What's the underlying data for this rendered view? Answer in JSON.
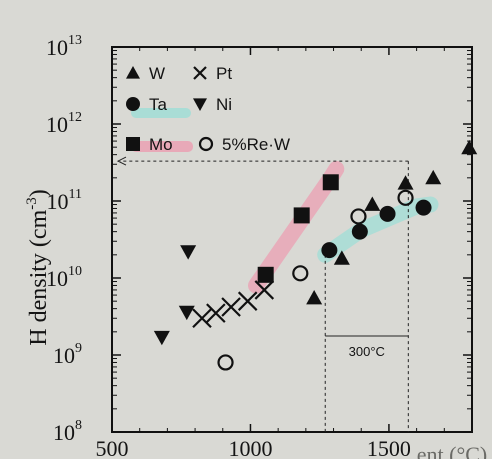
{
  "chart_data": {
    "type": "scatter",
    "ylabel_main": "H density (cm",
    "ylabel_sup": "-3",
    "ylabel_close": ")",
    "x_axis_label_partial": "ent (°C)",
    "x_ticks": [
      {
        "value": 500,
        "label": "500"
      },
      {
        "value": 1000,
        "label": "1000"
      },
      {
        "value": 1500,
        "label": "1500"
      }
    ],
    "y_ticks": [
      {
        "exp": 8,
        "base": "10",
        "sup": "8"
      },
      {
        "exp": 9,
        "base": "10",
        "sup": "9"
      },
      {
        "exp": 10,
        "base": "10",
        "sup": "10"
      },
      {
        "exp": 11,
        "base": "10",
        "sup": "11"
      },
      {
        "exp": 12,
        "base": "10",
        "sup": "12"
      },
      {
        "exp": 13,
        "base": "10",
        "sup": "13"
      }
    ],
    "xlim": [
      500,
      1800
    ],
    "ylim_log10": [
      8,
      13
    ],
    "legend": [
      {
        "name": "W",
        "marker": "triangle-up"
      },
      {
        "name": "Pt",
        "marker": "x"
      },
      {
        "name": "Ta",
        "marker": "circle-filled"
      },
      {
        "name": "Ni",
        "marker": "triangle-down"
      },
      {
        "name": "Mo",
        "marker": "square"
      },
      {
        "name": "5%Re·W",
        "marker": "circle-open"
      }
    ],
    "series": [
      {
        "name": "W",
        "marker": "triangle-up",
        "points": [
          {
            "x": 1230,
            "y": 5500000000.0
          },
          {
            "x": 1330,
            "y": 18000000000.0
          },
          {
            "x": 1440,
            "y": 90000000000.0
          },
          {
            "x": 1560,
            "y": 170000000000.0
          },
          {
            "x": 1660,
            "y": 200000000000.0
          },
          {
            "x": 1790,
            "y": 490000000000.0
          }
        ]
      },
      {
        "name": "Pt",
        "marker": "x",
        "points": [
          {
            "x": 825,
            "y": 3000000000.0
          },
          {
            "x": 875,
            "y": 3500000000.0
          },
          {
            "x": 930,
            "y": 4200000000.0
          },
          {
            "x": 990,
            "y": 5000000000.0
          },
          {
            "x": 1050,
            "y": 7000000000.0
          }
        ]
      },
      {
        "name": "Ta",
        "marker": "circle-filled",
        "points": [
          {
            "x": 1285,
            "y": 23000000000.0
          },
          {
            "x": 1395,
            "y": 40000000000.0
          },
          {
            "x": 1495,
            "y": 68000000000.0
          },
          {
            "x": 1625,
            "y": 82000000000.0
          }
        ]
      },
      {
        "name": "Ni",
        "marker": "triangle-down",
        "points": [
          {
            "x": 680,
            "y": 1700000000.0
          },
          {
            "x": 770,
            "y": 3600000000.0
          },
          {
            "x": 775,
            "y": 22000000000.0
          }
        ]
      },
      {
        "name": "Mo",
        "marker": "square",
        "points": [
          {
            "x": 1055,
            "y": 11000000000.0
          },
          {
            "x": 1185,
            "y": 65000000000.0
          },
          {
            "x": 1290,
            "y": 175000000000.0
          }
        ]
      },
      {
        "name": "5%Re·W",
        "marker": "circle-open",
        "points": [
          {
            "x": 910,
            "y": 800000000.0
          },
          {
            "x": 1180,
            "y": 11500000000.0
          },
          {
            "x": 1390,
            "y": 63000000000.0
          },
          {
            "x": 1560,
            "y": 110000000000.0
          }
        ]
      }
    ],
    "highlights": [
      {
        "color": "#e8a9b8",
        "path": [
          [
            1020,
            8000000000.0
          ],
          [
            1290,
            200000000000.0
          ],
          [
            1310,
            260000000000.0
          ]
        ]
      },
      {
        "color": "#a9ddd6",
        "path": [
          [
            1270,
            20000000000.0
          ],
          [
            1400,
            42000000000.0
          ],
          [
            1600,
            85000000000.0
          ],
          [
            1650,
            90000000000.0
          ]
        ]
      },
      {
        "color": "#a9ddd6",
        "legend_swatch": "Ta"
      },
      {
        "color": "#e8a9b8",
        "legend_swatch": "Mo"
      }
    ],
    "annotation": {
      "text": "300°C",
      "x1": 1270,
      "x2": 1570
    },
    "dashed_lines": {
      "y_level": 330000000000.0,
      "x_from": 500,
      "x_to": 1570
    }
  }
}
